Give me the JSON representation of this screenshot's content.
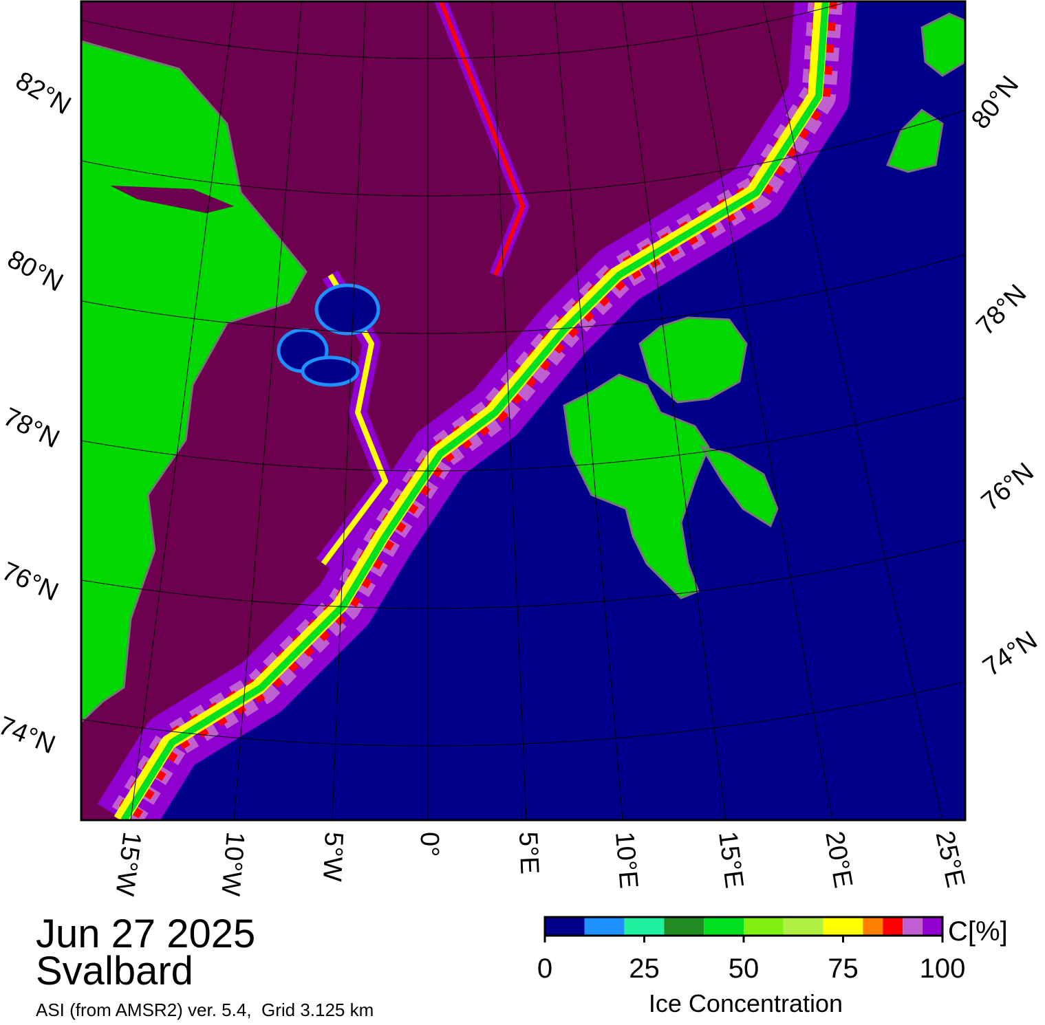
{
  "map": {
    "lat_labels_left": [
      "82°N",
      "80°N",
      "78°N",
      "76°N",
      "74°N"
    ],
    "lat_labels_right": [
      "80°N",
      "78°N",
      "76°N",
      "74°N"
    ],
    "lon_labels": [
      "15°W",
      "10°W",
      "5°W",
      "0°",
      "5°E",
      "10°E",
      "15°E",
      "20°E",
      "25°E"
    ]
  },
  "caption": {
    "date": "Jun 27 2025",
    "region": "Svalbard",
    "source": "ASI (from AMSR2) ver. 5.4,  Grid 3.125 km"
  },
  "colorbar": {
    "unit": "C[%]",
    "title": "Ice Concentration",
    "lim": [
      0,
      100
    ],
    "ticks": [
      0,
      25,
      50,
      75,
      100
    ],
    "bounds": [
      0,
      10,
      20,
      30,
      40,
      50,
      60,
      70,
      80,
      85,
      90,
      95,
      100
    ],
    "colors": [
      "#00008b",
      "#1e90ff",
      "#20f0a0",
      "#228b22",
      "#00e020",
      "#80f010",
      "#b0f040",
      "#ffff00",
      "#ff8000",
      "#ff0000",
      "#c060d0",
      "#9000d0"
    ]
  }
}
